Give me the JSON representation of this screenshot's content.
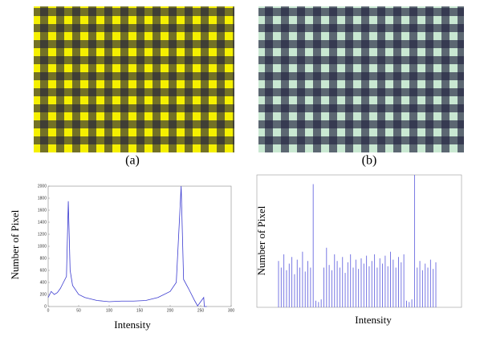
{
  "captions": [
    "(a)",
    "(b)"
  ],
  "chart_data": [
    {
      "type": "line",
      "ylabel": "Number of Pixel",
      "xlabel": "Intensity",
      "color": "#3a3ad0",
      "x": [
        0,
        5,
        10,
        15,
        20,
        25,
        30,
        33,
        36,
        40,
        50,
        60,
        80,
        100,
        120,
        140,
        160,
        180,
        200,
        210,
        218,
        222,
        230,
        240,
        245,
        255,
        256,
        260
      ],
      "values": [
        150,
        250,
        200,
        230,
        300,
        400,
        500,
        1750,
        600,
        350,
        200,
        150,
        100,
        80,
        90,
        90,
        100,
        150,
        250,
        400,
        2000,
        450,
        300,
        100,
        10,
        150,
        0,
        0
      ],
      "xlim": [
        0,
        300
      ],
      "xticks": [
        0,
        50,
        100,
        150,
        200,
        250,
        300
      ],
      "ylim": [
        0,
        2000
      ],
      "yticks": [
        0,
        200,
        400,
        600,
        800,
        1000,
        1200,
        1400,
        1600,
        1800,
        2000
      ]
    },
    {
      "type": "stem",
      "ylabel": "Number of Pixel",
      "xlabel": "Intensity",
      "color": "#6a6ae0",
      "values": [
        0.35,
        0.3,
        0.4,
        0.28,
        0.33,
        0.38,
        0.25,
        0.36,
        0.3,
        0.42,
        0.27,
        0.35,
        0.3,
        0.93,
        0.05,
        0.04,
        0.06,
        0.3,
        0.45,
        0.32,
        0.28,
        0.4,
        0.35,
        0.3,
        0.38,
        0.26,
        0.34,
        0.4,
        0.3,
        0.36,
        0.29,
        0.37,
        0.33,
        0.39,
        0.31,
        0.35,
        0.4,
        0.3,
        0.37,
        0.33,
        0.39,
        0.31,
        0.42,
        0.36,
        0.3,
        0.38,
        0.34,
        0.4,
        0.05,
        0.04,
        0.06,
        1.0,
        0.3,
        0.35,
        0.28,
        0.33,
        0.3,
        0.36,
        0.29,
        0.34
      ],
      "ylim": [
        0,
        1
      ]
    }
  ]
}
